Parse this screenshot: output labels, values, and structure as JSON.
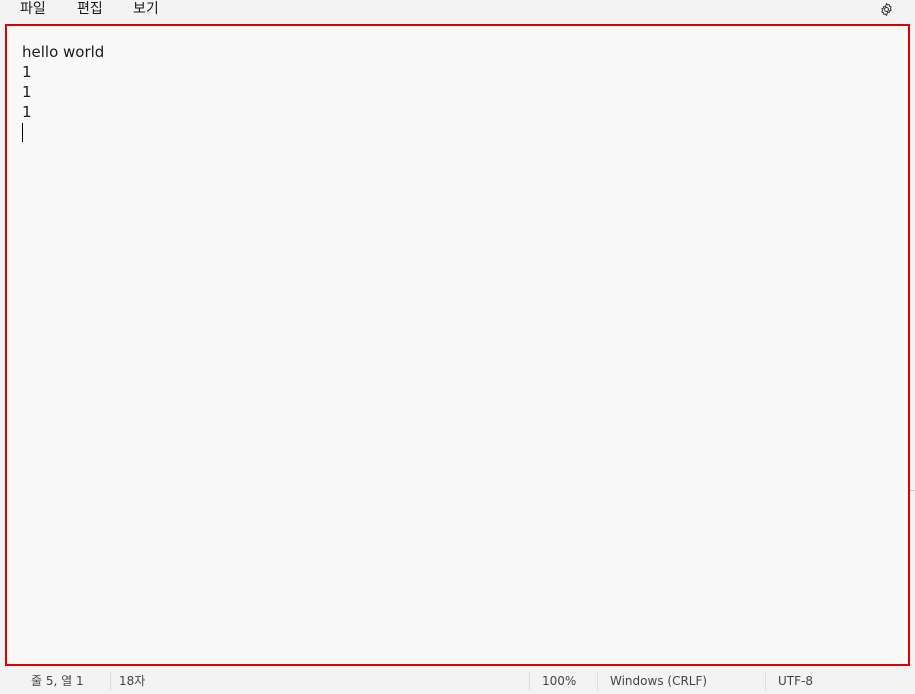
{
  "menu": {
    "items": [
      {
        "label": "파일"
      },
      {
        "label": "편집"
      },
      {
        "label": "보기"
      }
    ],
    "settings_icon": "gear-icon"
  },
  "editor": {
    "lines": [
      "hello world",
      "1",
      "1",
      "1",
      ""
    ],
    "highlight_color": "#e00000"
  },
  "status": {
    "position": "줄 5, 열 1",
    "char_count": "18자",
    "zoom": "100%",
    "line_ending": "Windows (CRLF)",
    "encoding": "UTF-8"
  }
}
